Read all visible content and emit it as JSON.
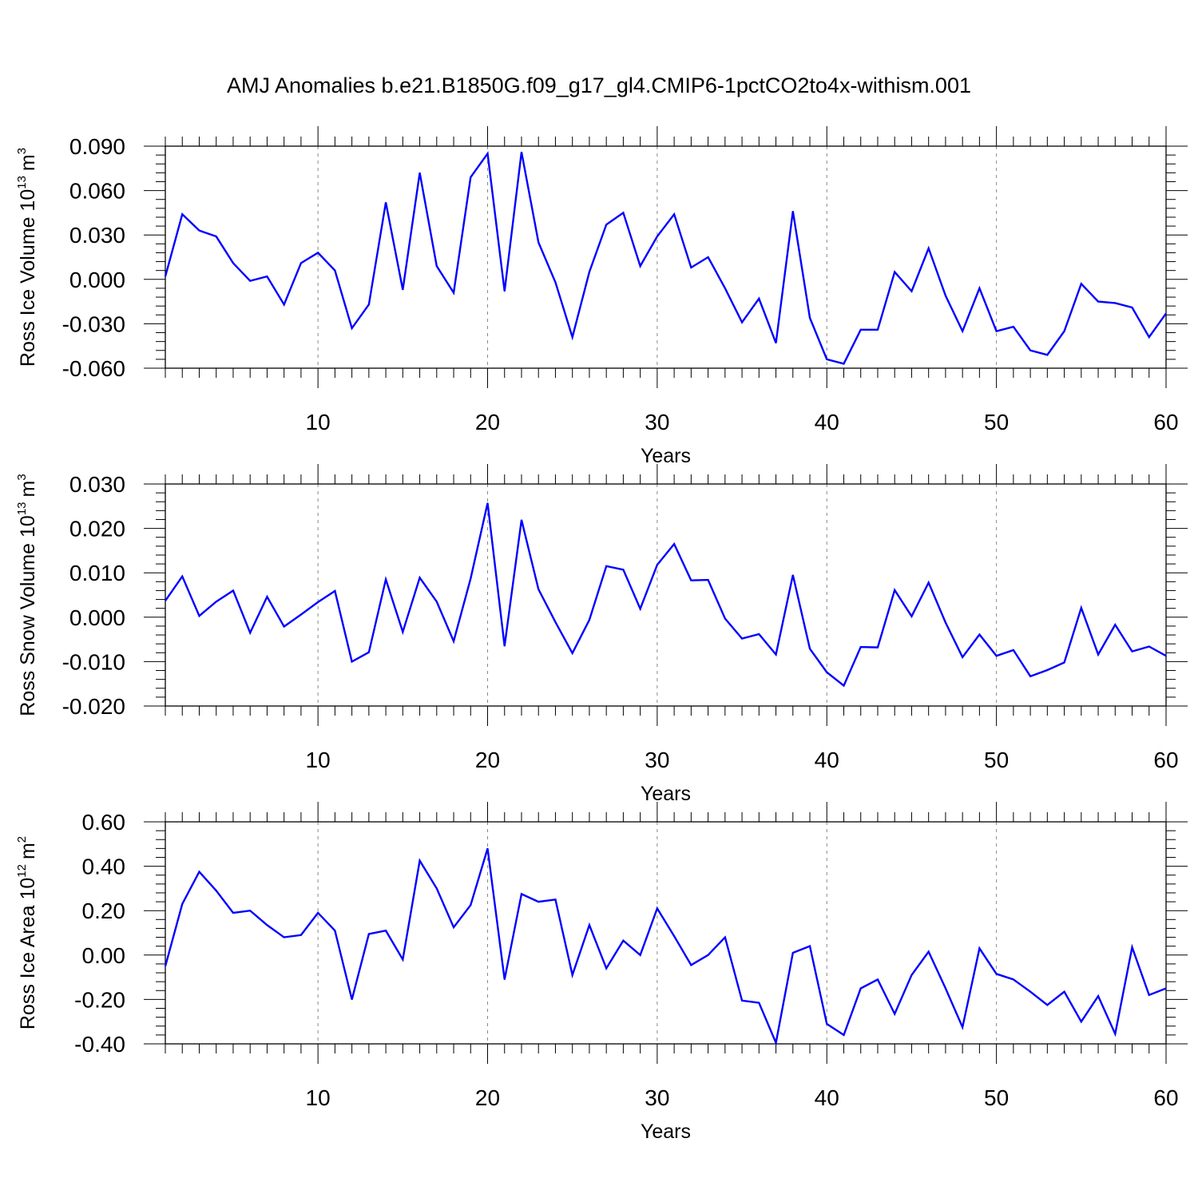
{
  "title": "AMJ Anomalies b.e21.B1850G.f09_g17_gl4.CMIP6-1pctCO2to4x-withism.001",
  "chart_data": [
    {
      "type": "line",
      "ylabel_main": "Ross Ice Volume 10",
      "ylabel_exp": "13",
      "ylabel_unit": "m",
      "ylabel_unit_exp": "3",
      "xlabel": "Years",
      "xlim": [
        1,
        60
      ],
      "ylim": [
        -0.06,
        0.09
      ],
      "xticks": [
        10,
        20,
        30,
        40,
        50,
        60
      ],
      "xtick_labels": [
        "10",
        "20",
        "30",
        "40",
        "50",
        "60"
      ],
      "yticks": [
        -0.06,
        -0.03,
        0.0,
        0.03,
        0.06,
        0.09
      ],
      "ytick_labels": [
        "-0.060",
        "-0.030",
        "0.000",
        "0.030",
        "0.060",
        "0.090"
      ],
      "color": "#0000ff",
      "grid": "dashed vertical at major x ticks",
      "series": [
        {
          "name": "Ross Ice Volume",
          "values": [
            0.002,
            0.044,
            0.033,
            0.029,
            0.011,
            -0.001,
            0.002,
            -0.017,
            0.011,
            0.018,
            0.006,
            -0.033,
            -0.017,
            0.052,
            -0.007,
            0.072,
            0.009,
            -0.009,
            0.069,
            0.085,
            -0.008,
            0.086,
            0.025,
            -0.002,
            -0.039,
            0.005,
            0.037,
            0.045,
            0.009,
            0.029,
            0.044,
            0.008,
            0.015,
            -0.006,
            -0.029,
            -0.013,
            -0.043,
            0.046,
            -0.026,
            -0.054,
            -0.057,
            -0.034,
            -0.034,
            0.005,
            -0.008,
            0.021,
            -0.011,
            -0.035,
            -0.006,
            -0.035,
            -0.032,
            -0.048,
            -0.051,
            -0.035,
            -0.003,
            -0.015,
            -0.016,
            -0.019,
            -0.039,
            -0.023
          ]
        }
      ]
    },
    {
      "type": "line",
      "ylabel_main": "Ross Snow Volume 10",
      "ylabel_exp": "13",
      "ylabel_unit": "m",
      "ylabel_unit_exp": "3",
      "xlabel": "Years",
      "xlim": [
        1,
        60
      ],
      "ylim": [
        -0.02,
        0.03
      ],
      "xticks": [
        10,
        20,
        30,
        40,
        50,
        60
      ],
      "xtick_labels": [
        "10",
        "20",
        "30",
        "40",
        "50",
        "60"
      ],
      "yticks": [
        -0.02,
        -0.01,
        0.0,
        0.01,
        0.02,
        0.03
      ],
      "ytick_labels": [
        "-0.020",
        "-0.010",
        "0.000",
        "0.010",
        "0.020",
        "0.030"
      ],
      "color": "#0000ff",
      "grid": "dashed vertical at major x ticks",
      "series": [
        {
          "name": "Ross Snow Volume",
          "values": [
            0.0037,
            0.0092,
            0.0003,
            0.0035,
            0.006,
            -0.0035,
            0.0046,
            -0.0021,
            0.0006,
            0.0034,
            0.0059,
            -0.01,
            -0.0079,
            0.0085,
            -0.0033,
            0.0089,
            0.0035,
            -0.0054,
            0.0087,
            0.0257,
            -0.0065,
            0.0219,
            0.0063,
            -0.0011,
            -0.0081,
            -0.0006,
            0.0115,
            0.0107,
            0.0019,
            0.0118,
            0.0165,
            0.0083,
            0.0084,
            -0.0003,
            -0.0048,
            -0.0038,
            -0.0084,
            0.0095,
            -0.0071,
            -0.0124,
            -0.0154,
            -0.0067,
            -0.0068,
            0.0061,
            0.0002,
            0.0078,
            -0.0012,
            -0.009,
            -0.0039,
            -0.0087,
            -0.0074,
            -0.0133,
            -0.0119,
            -0.0102,
            0.0021,
            -0.0084,
            -0.0017,
            -0.0077,
            -0.0066,
            -0.0087
          ]
        }
      ]
    },
    {
      "type": "line",
      "ylabel_main": "Ross Ice Area 10",
      "ylabel_exp": "12",
      "ylabel_unit": "m",
      "ylabel_unit_exp": "2",
      "xlabel": "Years",
      "xlim": [
        1,
        60
      ],
      "ylim": [
        -0.4,
        0.6
      ],
      "xticks": [
        10,
        20,
        30,
        40,
        50,
        60
      ],
      "xtick_labels": [
        "10",
        "20",
        "30",
        "40",
        "50",
        "60"
      ],
      "yticks": [
        -0.4,
        -0.2,
        0.0,
        0.2,
        0.4,
        0.6
      ],
      "ytick_labels": [
        "-0.40",
        "-0.20",
        "0.00",
        "0.20",
        "0.40",
        "0.60"
      ],
      "color": "#0000ff",
      "grid": "dashed vertical at major x ticks",
      "series": [
        {
          "name": "Ross Ice Area",
          "values": [
            -0.05,
            0.23,
            0.375,
            0.29,
            0.19,
            0.2,
            0.135,
            0.08,
            0.09,
            0.19,
            0.11,
            -0.2,
            0.095,
            0.11,
            -0.02,
            0.425,
            0.3,
            0.125,
            0.225,
            0.48,
            -0.11,
            0.275,
            0.24,
            0.25,
            -0.09,
            0.135,
            -0.06,
            0.065,
            0.0,
            0.21,
            0.085,
            -0.045,
            0.0,
            0.08,
            -0.205,
            -0.215,
            -0.395,
            0.01,
            0.04,
            -0.31,
            -0.36,
            -0.15,
            -0.11,
            -0.265,
            -0.09,
            0.015,
            -0.15,
            -0.325,
            0.03,
            -0.085,
            -0.11,
            -0.165,
            -0.225,
            -0.165,
            -0.3,
            -0.185,
            -0.355,
            0.035,
            -0.18,
            -0.15
          ]
        }
      ]
    }
  ]
}
